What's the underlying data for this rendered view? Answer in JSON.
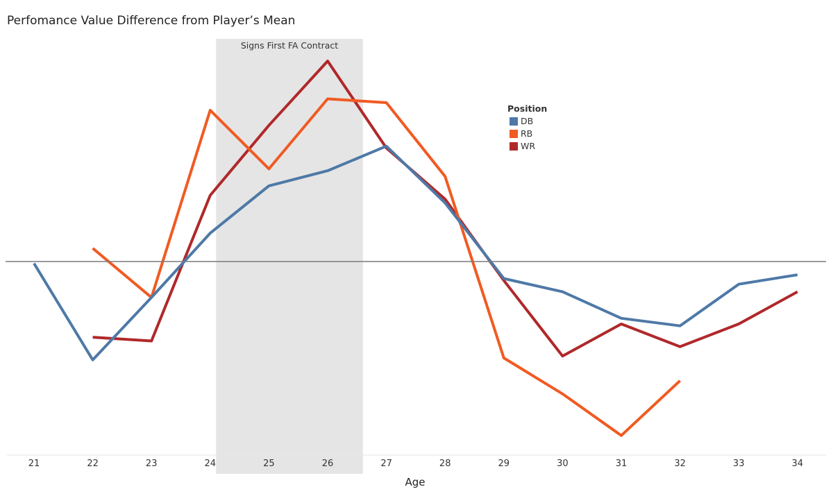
{
  "chart_data": {
    "type": "line",
    "title": "Perfomance Value Difference from Player’s Mean",
    "xlabel": "Age",
    "ylabel": "",
    "x": [
      21,
      22,
      23,
      24,
      25,
      26,
      27,
      28,
      29,
      30,
      31,
      32,
      33,
      34
    ],
    "xlim": [
      20.5,
      34.5
    ],
    "ylim": [
      -1.0,
      1.05
    ],
    "reference_line": 0,
    "shaded_band": {
      "label": "Signs First FA Contract",
      "x_start": 24.1,
      "x_end": 26.6,
      "color": "#d3d3d3"
    },
    "legend": {
      "title": "Position",
      "placement": "top-right"
    },
    "grid": false,
    "series": [
      {
        "name": "DB",
        "color": "#4e79a7",
        "values": [
          -0.01,
          -0.52,
          -0.19,
          0.15,
          0.4,
          0.48,
          0.61,
          0.31,
          -0.09,
          -0.16,
          -0.3,
          -0.34,
          -0.12,
          -0.07
        ]
      },
      {
        "name": "RB",
        "color": "#f15a22",
        "values": [
          null,
          0.07,
          -0.19,
          0.8,
          0.49,
          0.86,
          0.84,
          0.45,
          -0.51,
          -0.7,
          -0.92,
          -0.63,
          null,
          null
        ]
      },
      {
        "name": "WR",
        "color": "#b0282a",
        "values": [
          null,
          -0.4,
          -0.42,
          0.35,
          0.72,
          1.06,
          0.6,
          0.33,
          -0.1,
          -0.5,
          -0.33,
          -0.45,
          -0.33,
          -0.16
        ]
      }
    ]
  }
}
